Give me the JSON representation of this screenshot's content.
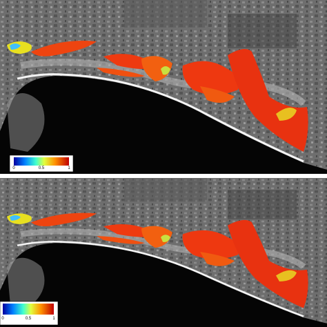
{
  "panels": [
    {
      "colorbar": {
        "ticks": [
          0,
          0.5,
          1
        ]
      }
    },
    {
      "colorbar": {
        "ticks": [
          0,
          0.5,
          1
        ]
      }
    }
  ]
}
